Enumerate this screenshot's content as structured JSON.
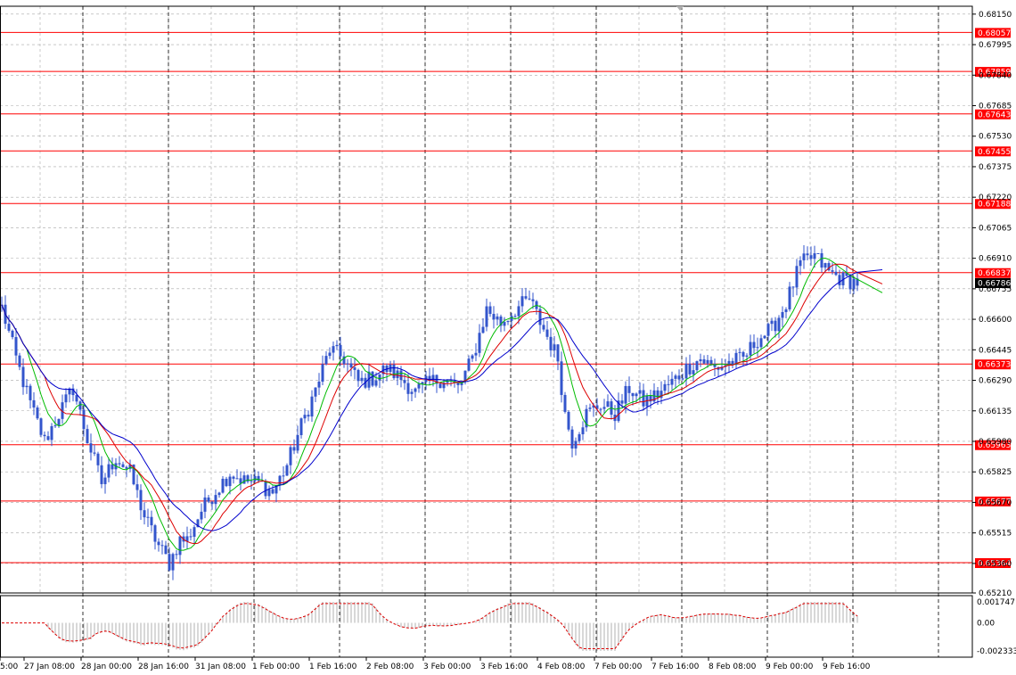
{
  "chart_data": {
    "type": "candlestick",
    "price_axis": {
      "range": [
        0.6521,
        0.6819
      ],
      "ticks": [
        "0.68150",
        "0.67995",
        "0.67840",
        "0.67685",
        "0.67530",
        "0.67375",
        "0.67220",
        "0.67065",
        "0.66910",
        "0.66755",
        "0.66600",
        "0.66445",
        "0.66290",
        "0.66135",
        "0.65980",
        "0.65825",
        "0.65670",
        "0.65515",
        "0.65360",
        "0.65210"
      ]
    },
    "horizontal_levels": [
      {
        "value": "0.68057",
        "color": "#ff0000"
      },
      {
        "value": "0.67859",
        "color": "#ff0000"
      },
      {
        "value": "0.67643",
        "color": "#ff0000"
      },
      {
        "value": "0.67455",
        "color": "#ff0000"
      },
      {
        "value": "0.67188",
        "color": "#ff0000"
      },
      {
        "value": "0.66837",
        "color": "#ff0000"
      },
      {
        "value": "0.66373",
        "color": "#ff0000"
      },
      {
        "value": "0.65963",
        "color": "#ff0000"
      },
      {
        "value": "0.65677",
        "color": "#ff0000"
      },
      {
        "value": "0.65364",
        "color": "#ff0000"
      }
    ],
    "current_price": {
      "value": "0.66786",
      "color": "#000000"
    },
    "time_axis": [
      "5:00",
      "27 Jan 08:00",
      "28 Jan 00:00",
      "28 Jan 16:00",
      "31 Jan 08:00",
      "1 Feb 00:00",
      "1 Feb 16:00",
      "2 Feb 08:00",
      "3 Feb 00:00",
      "3 Feb 16:00",
      "4 Feb 08:00",
      "7 Feb 00:00",
      "7 Feb 16:00",
      "8 Feb 08:00",
      "9 Feb 00:00",
      "9 Feb 16:00"
    ],
    "close_anchors": [
      [
        0,
        0.6666
      ],
      [
        4,
        0.664
      ],
      [
        8,
        0.6617
      ],
      [
        12,
        0.6598
      ],
      [
        16,
        0.6612
      ],
      [
        20,
        0.6625
      ],
      [
        24,
        0.6599
      ],
      [
        28,
        0.6577
      ],
      [
        32,
        0.659
      ],
      [
        36,
        0.6582
      ],
      [
        40,
        0.656
      ],
      [
        44,
        0.6545
      ],
      [
        47,
        0.6536
      ],
      [
        50,
        0.6548
      ],
      [
        52,
        0.6548
      ],
      [
        56,
        0.6563
      ],
      [
        60,
        0.6573
      ],
      [
        64,
        0.6582
      ],
      [
        68,
        0.6578
      ],
      [
        72,
        0.6577
      ],
      [
        76,
        0.6572
      ],
      [
        80,
        0.6586
      ],
      [
        84,
        0.6606
      ],
      [
        88,
        0.6624
      ],
      [
        92,
        0.6645
      ],
      [
        96,
        0.664
      ],
      [
        100,
        0.6628
      ],
      [
        104,
        0.663
      ],
      [
        108,
        0.6635
      ],
      [
        112,
        0.663
      ],
      [
        116,
        0.6623
      ],
      [
        120,
        0.6628
      ],
      [
        124,
        0.663
      ],
      [
        128,
        0.6625
      ],
      [
        132,
        0.664
      ],
      [
        136,
        0.6665
      ],
      [
        140,
        0.6658
      ],
      [
        144,
        0.6665
      ],
      [
        148,
        0.667
      ],
      [
        152,
        0.6655
      ],
      [
        156,
        0.664
      ],
      [
        158,
        0.6612
      ],
      [
        160,
        0.6598
      ],
      [
        164,
        0.6612
      ],
      [
        168,
        0.6617
      ],
      [
        172,
        0.6612
      ],
      [
        176,
        0.6625
      ],
      [
        180,
        0.6618
      ],
      [
        184,
        0.6622
      ],
      [
        188,
        0.6628
      ],
      [
        192,
        0.6635
      ],
      [
        196,
        0.664
      ],
      [
        200,
        0.6635
      ],
      [
        204,
        0.6638
      ],
      [
        208,
        0.664
      ],
      [
        212,
        0.665
      ],
      [
        216,
        0.6655
      ],
      [
        220,
        0.6668
      ],
      [
        224,
        0.6688
      ],
      [
        228,
        0.6692
      ],
      [
        232,
        0.6684
      ],
      [
        236,
        0.668
      ],
      [
        240,
        0.6679
      ]
    ],
    "indicators": [
      {
        "type": "moving_average",
        "period": 8,
        "color": "#00bb00"
      },
      {
        "type": "moving_average",
        "period": 13,
        "color": "#dd0000"
      },
      {
        "type": "moving_average",
        "period": 21,
        "color": "#0000cc"
      }
    ],
    "oscillator": {
      "type": "histogram_with_signal",
      "axis_ticks": [
        "0.001747",
        "0.00",
        "-0.002333"
      ],
      "range": [
        -0.002333,
        0.001747
      ],
      "histogram_color": "#b0b0b0",
      "signal_color": "#dd0000"
    },
    "colors": {
      "candles": "#3355cc",
      "grid": "#a8a8a8",
      "vertical_separators": "#000000",
      "level_label_bg": "#ff0000",
      "level_label_text": "#ffffff"
    }
  }
}
